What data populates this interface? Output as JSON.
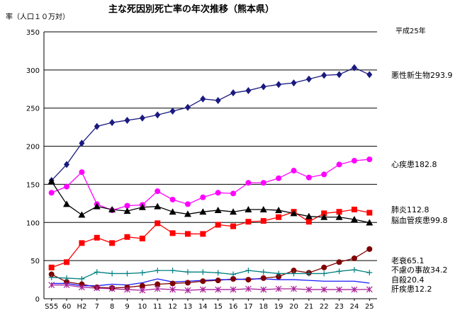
{
  "chart_data": {
    "type": "line",
    "title": "主な死因別死亡率の年次推移（熊本県）",
    "ylabel": "率（人口１０万対）",
    "year_note": "平成25年",
    "ylim": [
      0,
      350
    ],
    "yticks": [
      0,
      50,
      100,
      150,
      200,
      250,
      300,
      350
    ],
    "grid": "horizontal",
    "categories": [
      "S55",
      "60",
      "H2",
      "7",
      "8",
      "9",
      "10",
      "11",
      "12",
      "13",
      "14",
      "15",
      "16",
      "17",
      "18",
      "19",
      "20",
      "21",
      "22",
      "23",
      "24",
      "25"
    ],
    "series": [
      {
        "name": "悪性新生物",
        "label": "悪性新生物293.9",
        "color": "#1a1a80",
        "marker": "diamond",
        "values": [
          155,
          176,
          204,
          226,
          231,
          234,
          237,
          241,
          246,
          251,
          262,
          260,
          270,
          273,
          278,
          281,
          283,
          288,
          293,
          294,
          303,
          293.9
        ]
      },
      {
        "name": "心疾患",
        "label": "心疾患182.8",
        "color": "#ff00ff",
        "marker": "circle",
        "values": [
          139,
          147,
          166,
          124,
          116,
          122,
          123,
          141,
          130,
          124,
          133,
          139,
          138,
          152,
          152,
          158,
          168,
          159,
          163,
          176,
          181,
          182.8
        ]
      },
      {
        "name": "肺炎",
        "label": "肺炎112.8",
        "color": "#ff0000",
        "marker": "square",
        "values": [
          41,
          48,
          73,
          80,
          73,
          81,
          79,
          99,
          86,
          85,
          85,
          97,
          95,
          101,
          102,
          107,
          114,
          101,
          112,
          114,
          117,
          112.8
        ]
      },
      {
        "name": "脳血管疾患",
        "label": "脳血管疾患99.8",
        "color": "#000000",
        "marker": "triangle",
        "values": [
          154,
          124,
          110,
          121,
          117,
          115,
          120,
          121,
          114,
          111,
          114,
          116,
          114,
          117,
          117,
          116,
          112,
          108,
          107,
          107,
          104,
          99.8
        ]
      },
      {
        "name": "老衰",
        "label": "老衰65.1",
        "color": "#800000",
        "marker": "circle",
        "values": [
          32,
          22,
          19,
          15,
          14,
          15,
          17,
          19,
          20,
          21,
          23,
          24,
          26,
          25,
          27,
          29,
          37,
          34,
          41,
          48,
          53,
          65.1
        ]
      },
      {
        "name": "不慮の事故",
        "label": "不慮の事故34.2",
        "color": "#008080",
        "marker": "plus",
        "values": [
          28,
          27,
          26,
          35,
          33,
          33,
          34,
          37,
          37,
          35,
          35,
          34,
          32,
          37,
          35,
          33,
          33,
          33,
          33,
          36,
          38,
          34.2
        ]
      },
      {
        "name": "自殺",
        "label": "自殺20.4",
        "color": "#1a1aff",
        "marker": "none",
        "values": [
          20,
          20,
          17,
          17,
          19,
          18,
          21,
          26,
          22,
          23,
          24,
          25,
          25,
          26,
          26,
          25,
          25,
          24,
          23,
          23,
          23,
          20.4
        ]
      },
      {
        "name": "肝疾患",
        "label": "肝疾患12.2",
        "color": "#aa2299",
        "marker": "star",
        "values": [
          18,
          18,
          15,
          14,
          13,
          12,
          11,
          13,
          12,
          11,
          12,
          12,
          12,
          13,
          12,
          13,
          13,
          12,
          12,
          12,
          12,
          12.2
        ]
      }
    ]
  }
}
